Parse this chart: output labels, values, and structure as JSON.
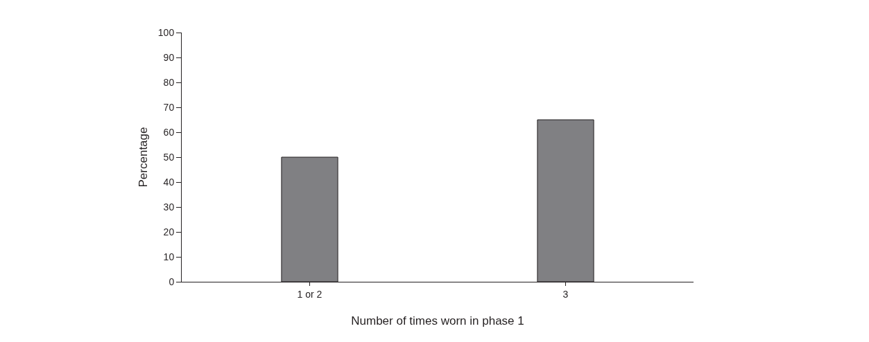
{
  "chart_data": {
    "type": "bar",
    "xlabel": "Number of times worn in phase 1",
    "ylabel": "Percentage",
    "categories": [
      "1 or 2",
      "3"
    ],
    "values": [
      50,
      65
    ],
    "color": "#808083",
    "ylim": [
      0,
      100
    ],
    "yticks": [
      0,
      10,
      20,
      30,
      40,
      50,
      60,
      70,
      80,
      90,
      100
    ]
  }
}
